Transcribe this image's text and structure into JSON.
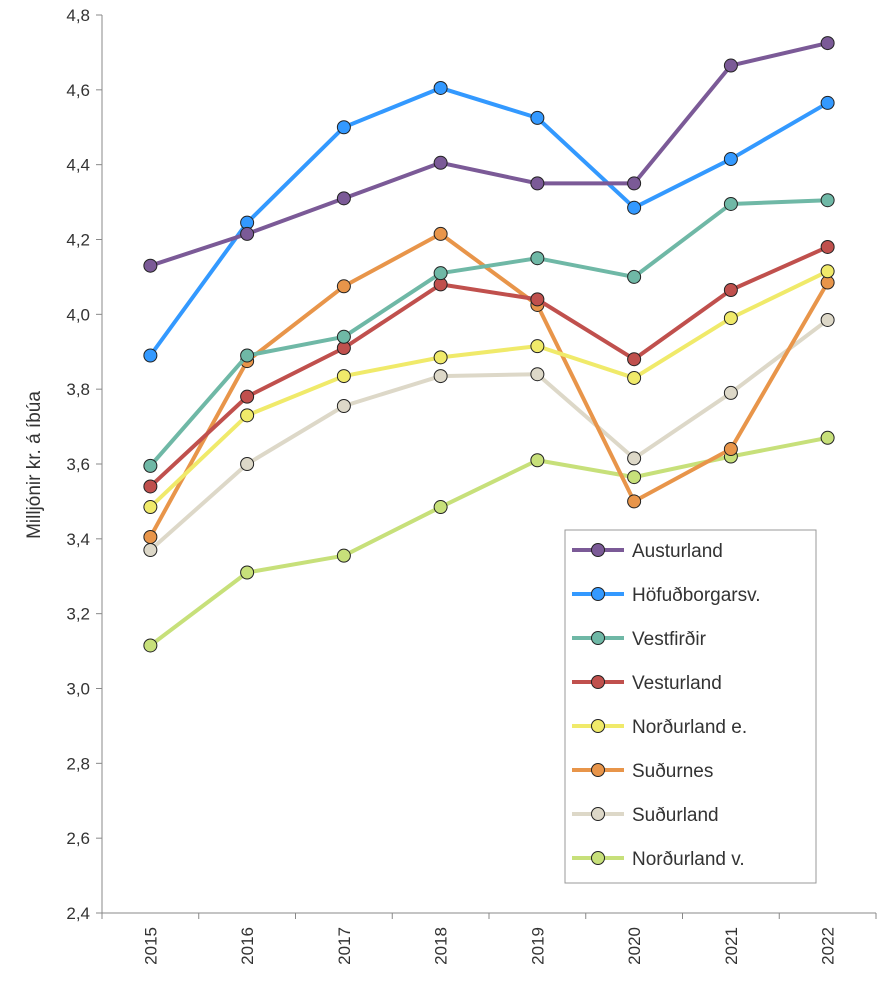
{
  "chart_data": {
    "type": "line",
    "title": "",
    "xlabel": "",
    "ylabel": "Milljónir kr. á íbúa",
    "categories": [
      "2015",
      "2016",
      "2017",
      "2018",
      "2019",
      "2020",
      "2021",
      "2022"
    ],
    "ylim": [
      2.4,
      4.8
    ],
    "yticks": [
      2.4,
      2.6,
      2.8,
      3.0,
      3.2,
      3.4,
      3.6,
      3.8,
      4.0,
      4.2,
      4.4,
      4.6,
      4.8
    ],
    "ytick_labels": [
      "2,4",
      "2,6",
      "2,8",
      "3,0",
      "3,2",
      "3,4",
      "3,6",
      "3,8",
      "4,0",
      "4,2",
      "4,4",
      "4,6",
      "4,8"
    ],
    "grid": false,
    "legend_position": "bottom-right",
    "series": [
      {
        "name": "Austurland",
        "color": "#7b5a97",
        "values": [
          4.13,
          4.215,
          4.31,
          4.405,
          4.35,
          4.35,
          4.665,
          4.725
        ]
      },
      {
        "name": "Höfuðborgarsv.",
        "color": "#3399ff",
        "values": [
          3.89,
          4.245,
          4.5,
          4.605,
          4.525,
          4.285,
          4.415,
          4.565
        ]
      },
      {
        "name": "Vestfirðir",
        "color": "#6fb8a6",
        "values": [
          3.595,
          3.89,
          3.94,
          4.11,
          4.15,
          4.1,
          4.295,
          4.305
        ]
      },
      {
        "name": "Vesturland",
        "color": "#c0504d",
        "values": [
          3.54,
          3.78,
          3.91,
          4.08,
          4.04,
          3.88,
          4.065,
          4.18
        ]
      },
      {
        "name": "Norðurland e.",
        "color": "#f0ea6a",
        "values": [
          3.485,
          3.73,
          3.835,
          3.885,
          3.915,
          3.83,
          3.99,
          4.115
        ]
      },
      {
        "name": "Suðurnes",
        "color": "#e8954a",
        "values": [
          3.405,
          3.875,
          4.075,
          4.215,
          4.025,
          3.5,
          3.64,
          4.085
        ]
      },
      {
        "name": "Suðurland",
        "color": "#ddd8c8",
        "values": [
          3.37,
          3.6,
          3.755,
          3.835,
          3.84,
          3.615,
          3.79,
          3.985
        ]
      },
      {
        "name": "Norðurland v.",
        "color": "#c7e07a",
        "values": [
          3.115,
          3.31,
          3.355,
          3.485,
          3.61,
          3.565,
          3.62,
          3.67
        ]
      }
    ]
  }
}
